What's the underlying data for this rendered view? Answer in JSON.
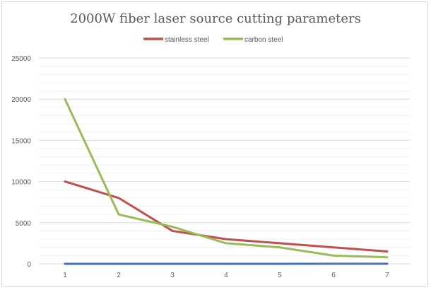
{
  "chart_data": {
    "type": "line",
    "title": "2000W fiber laser source cutting parameters",
    "xlabel": "",
    "ylabel": "",
    "categories": [
      "1",
      "2",
      "3",
      "4",
      "5",
      "6",
      "7"
    ],
    "ylim": [
      0,
      25000
    ],
    "yticks": [
      "0",
      "5000",
      "10000",
      "15000",
      "20000",
      "25000"
    ],
    "grid": "major every 5000, minor every 1000",
    "legend": "top",
    "series": [
      {
        "name": "",
        "color": "#4472c4",
        "values": [
          1,
          2,
          3,
          4,
          5,
          6,
          7
        ],
        "in_legend": false
      },
      {
        "name": "stainless steel",
        "color": "#c0504d",
        "values": [
          10000,
          8000,
          4000,
          3000,
          2500,
          2000,
          1500
        ],
        "in_legend": true
      },
      {
        "name": "carbon steel",
        "color": "#9bbb59",
        "values": [
          20000,
          6000,
          4500,
          2500,
          2000,
          1000,
          800
        ],
        "in_legend": true
      }
    ]
  }
}
